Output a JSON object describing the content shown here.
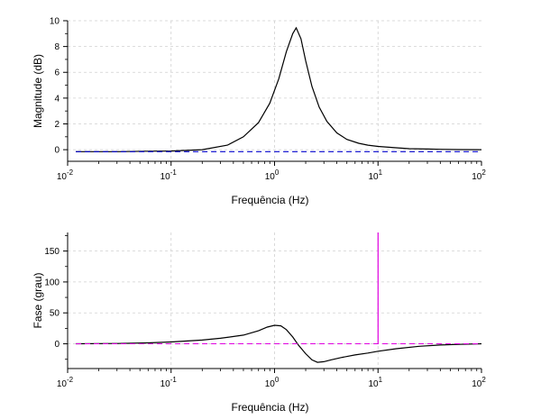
{
  "chart_data": [
    {
      "type": "line",
      "xlabel": "Frequência (Hz)",
      "ylabel": "Magnitude (dB)",
      "xscale": "log",
      "xlim": [
        0.01,
        100
      ],
      "ylim": [
        -0.9,
        10
      ],
      "xticks": [
        {
          "value": 0.01,
          "base": "10",
          "exp": "-2"
        },
        {
          "value": 0.1,
          "base": "10",
          "exp": "-1"
        },
        {
          "value": 1,
          "base": "10",
          "exp": "0"
        },
        {
          "value": 10,
          "base": "10",
          "exp": "1"
        },
        {
          "value": 100,
          "base": "10",
          "exp": "2"
        }
      ],
      "yticks": [
        0,
        2,
        4,
        6,
        8,
        10
      ],
      "grid": true,
      "series": [
        {
          "color": "#000000",
          "style": "solid",
          "x": [
            0.012,
            0.03,
            0.06,
            0.1,
            0.2,
            0.35,
            0.5,
            0.7,
            0.9,
            1.1,
            1.3,
            1.5,
            1.62,
            1.8,
            2.0,
            2.3,
            2.7,
            3.2,
            4.0,
            5.0,
            6.5,
            8.0,
            10,
            15,
            20,
            30,
            40,
            60,
            100
          ],
          "y": [
            -0.15,
            -0.15,
            -0.12,
            -0.1,
            0.0,
            0.35,
            1.0,
            2.1,
            3.6,
            5.5,
            7.6,
            9.0,
            9.45,
            8.6,
            6.9,
            4.9,
            3.3,
            2.2,
            1.3,
            0.8,
            0.5,
            0.35,
            0.25,
            0.15,
            0.08,
            0.05,
            0.03,
            0.01,
            0.0
          ]
        },
        {
          "color": "#0000cc",
          "style": "dashed",
          "x": [
            0.012,
            100
          ],
          "y": [
            -0.15,
            -0.15
          ]
        }
      ]
    },
    {
      "type": "line",
      "xlabel": "Frequência (Hz)",
      "ylabel": "Fase (grau)",
      "xscale": "log",
      "xlim": [
        0.01,
        100
      ],
      "ylim": [
        -40,
        180
      ],
      "xticks": [
        {
          "value": 0.01,
          "base": "10",
          "exp": "-2"
        },
        {
          "value": 0.1,
          "base": "10",
          "exp": "-1"
        },
        {
          "value": 1,
          "base": "10",
          "exp": "0"
        },
        {
          "value": 10,
          "base": "10",
          "exp": "1"
        },
        {
          "value": 100,
          "base": "10",
          "exp": "2"
        }
      ],
      "yticks": [
        0,
        50,
        100,
        150
      ],
      "grid": true,
      "series": [
        {
          "color": "#000000",
          "style": "solid",
          "x": [
            0.012,
            0.03,
            0.06,
            0.1,
            0.2,
            0.3,
            0.5,
            0.7,
            0.85,
            1.0,
            1.15,
            1.3,
            1.5,
            1.7,
            2.0,
            2.3,
            2.6,
            3.0,
            3.5,
            4.5,
            6.0,
            8.0,
            10,
            15,
            25,
            40,
            60,
            100
          ],
          "y": [
            0,
            0.5,
            1.5,
            3,
            6,
            9,
            14,
            21,
            27,
            30,
            29,
            23,
            11,
            -2,
            -16,
            -26,
            -30,
            -29,
            -26,
            -22,
            -18,
            -15,
            -12,
            -8,
            -4,
            -2,
            -1,
            0
          ]
        },
        {
          "color": "#e000e0",
          "style": "dashed",
          "x": [
            0.012,
            100
          ],
          "y": [
            0,
            0
          ]
        },
        {
          "color": "#e000e0",
          "style": "solid",
          "x": [
            10,
            10
          ],
          "y": [
            0,
            180
          ]
        }
      ]
    }
  ]
}
